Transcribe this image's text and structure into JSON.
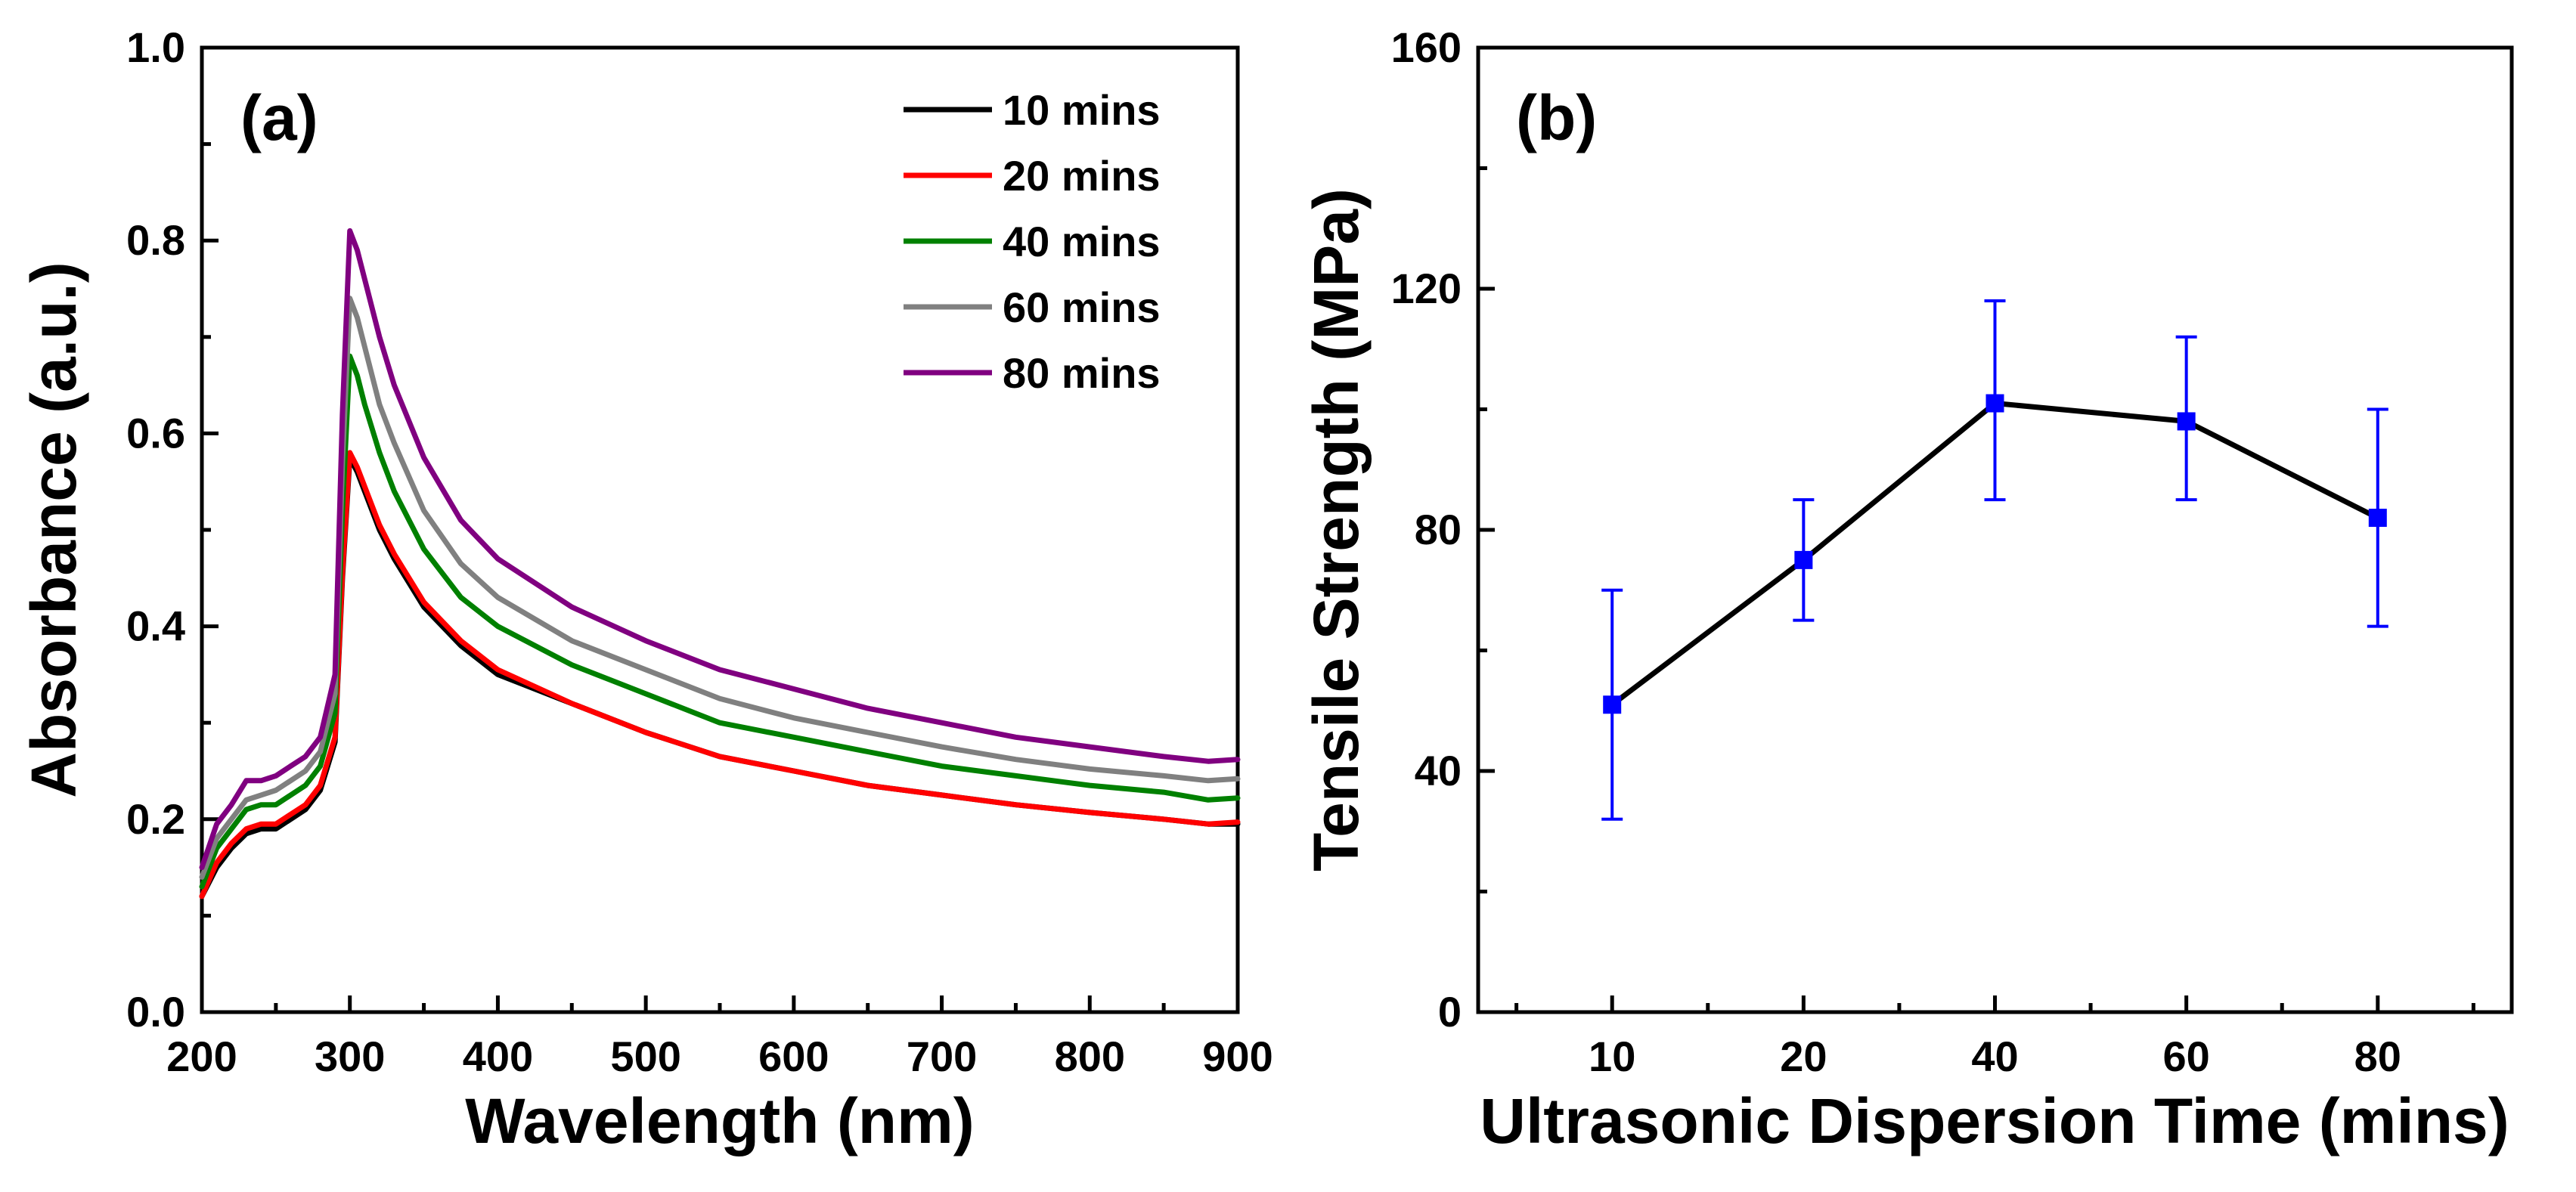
{
  "chart_data": [
    {
      "type": "line",
      "panel_label": "(a)",
      "xlabel": "Wavelength (nm)",
      "ylabel": "Absorbance (a.u.)",
      "xlim": [
        200,
        900
      ],
      "ylim": [
        0.0,
        1.0
      ],
      "x_ticks": [
        200,
        300,
        400,
        500,
        600,
        700,
        800,
        900
      ],
      "x_tick_labels": [
        "200",
        "300",
        "400",
        "500",
        "600",
        "700",
        "800",
        "900"
      ],
      "y_ticks": [
        0.0,
        0.2,
        0.4,
        0.6,
        0.8,
        1.0
      ],
      "y_tick_labels": [
        "0.0",
        "0.2",
        "0.4",
        "0.6",
        "0.8",
        "1.0"
      ],
      "legend_position": "top-right",
      "x": [
        200,
        210,
        220,
        230,
        240,
        250,
        260,
        270,
        280,
        290,
        295,
        300,
        305,
        310,
        320,
        330,
        350,
        375,
        400,
        450,
        500,
        550,
        600,
        650,
        700,
        750,
        800,
        850,
        880,
        900
      ],
      "series": [
        {
          "name": "10 mins",
          "color": "#000000",
          "values": [
            0.12,
            0.15,
            0.17,
            0.185,
            0.19,
            0.19,
            0.2,
            0.21,
            0.23,
            0.28,
            0.45,
            0.575,
            0.56,
            0.54,
            0.5,
            0.47,
            0.42,
            0.38,
            0.35,
            0.32,
            0.29,
            0.265,
            0.25,
            0.235,
            0.225,
            0.215,
            0.207,
            0.2,
            0.195,
            0.195
          ]
        },
        {
          "name": "20 mins",
          "color": "#ff0000",
          "values": [
            0.12,
            0.155,
            0.175,
            0.19,
            0.195,
            0.195,
            0.205,
            0.215,
            0.235,
            0.285,
            0.455,
            0.58,
            0.565,
            0.545,
            0.505,
            0.475,
            0.425,
            0.385,
            0.355,
            0.32,
            0.29,
            0.265,
            0.25,
            0.235,
            0.225,
            0.215,
            0.207,
            0.2,
            0.195,
            0.197
          ]
        },
        {
          "name": "40 mins",
          "color": "#008000",
          "values": [
            0.13,
            0.17,
            0.19,
            0.21,
            0.215,
            0.215,
            0.225,
            0.235,
            0.255,
            0.31,
            0.52,
            0.68,
            0.66,
            0.63,
            0.58,
            0.54,
            0.48,
            0.43,
            0.4,
            0.36,
            0.33,
            0.3,
            0.285,
            0.27,
            0.255,
            0.245,
            0.235,
            0.228,
            0.22,
            0.222
          ]
        },
        {
          "name": "60 mins",
          "color": "#808080",
          "values": [
            0.14,
            0.18,
            0.2,
            0.22,
            0.225,
            0.23,
            0.24,
            0.25,
            0.27,
            0.33,
            0.57,
            0.74,
            0.72,
            0.69,
            0.63,
            0.59,
            0.52,
            0.465,
            0.43,
            0.385,
            0.355,
            0.325,
            0.305,
            0.29,
            0.275,
            0.262,
            0.252,
            0.245,
            0.24,
            0.242
          ]
        },
        {
          "name": "80 mins",
          "color": "#800080",
          "values": [
            0.15,
            0.195,
            0.215,
            0.24,
            0.24,
            0.245,
            0.255,
            0.265,
            0.285,
            0.35,
            0.62,
            0.81,
            0.79,
            0.76,
            0.7,
            0.65,
            0.575,
            0.51,
            0.47,
            0.42,
            0.385,
            0.355,
            0.335,
            0.315,
            0.3,
            0.285,
            0.275,
            0.265,
            0.26,
            0.262
          ]
        }
      ]
    },
    {
      "type": "line",
      "panel_label": "(b)",
      "xlabel": "Ultrasonic Dispersion Time (mins)",
      "ylabel": "Tensile Strength (MPa)",
      "ylim": [
        0,
        160
      ],
      "categories": [
        "10",
        "20",
        "40",
        "60",
        "80"
      ],
      "y_ticks": [
        0,
        40,
        80,
        120,
        160
      ],
      "y_tick_labels": [
        "0",
        "40",
        "80",
        "120",
        "160"
      ],
      "marker_color": "#0000ff",
      "line_color": "#000000",
      "series": [
        {
          "name": "Tensile Strength",
          "values": [
            51,
            75,
            101,
            98,
            82
          ],
          "error_low": [
            32,
            65,
            85,
            85,
            64
          ],
          "error_high": [
            70,
            85,
            118,
            112,
            100
          ]
        }
      ]
    }
  ]
}
